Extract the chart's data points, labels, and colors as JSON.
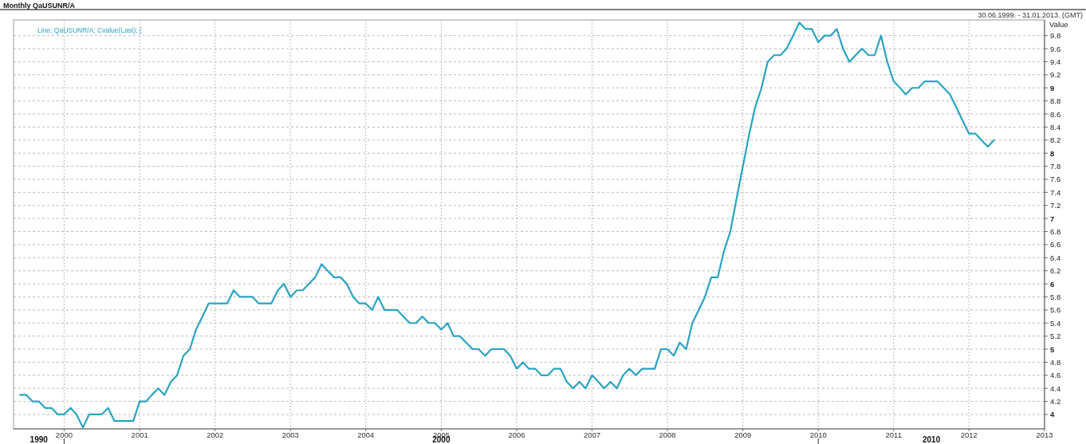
{
  "chart_data": {
    "type": "line",
    "title": "Monthly QaUSUNR/A",
    "subtitle": "30.06.1999. - 31.01.2013. (GMT)",
    "ylabel": "Value",
    "annotations": [
      "1990",
      "2000",
      "2010"
    ],
    "x": [
      "1999-06",
      "1999-07",
      "1999-08",
      "1999-09",
      "1999-10",
      "1999-11",
      "1999-12",
      "2000-01",
      "2000-02",
      "2000-03",
      "2000-04",
      "2000-05",
      "2000-06",
      "2000-07",
      "2000-08",
      "2000-09",
      "2000-10",
      "2000-11",
      "2000-12",
      "2001-01",
      "2001-02",
      "2001-03",
      "2001-04",
      "2001-05",
      "2001-06",
      "2001-07",
      "2001-08",
      "2001-09",
      "2001-10",
      "2001-11",
      "2001-12",
      "2002-01",
      "2002-02",
      "2002-03",
      "2002-04",
      "2002-05",
      "2002-06",
      "2002-07",
      "2002-08",
      "2002-09",
      "2002-10",
      "2002-11",
      "2002-12",
      "2003-01",
      "2003-02",
      "2003-03",
      "2003-04",
      "2003-05",
      "2003-06",
      "2003-07",
      "2003-08",
      "2003-09",
      "2003-10",
      "2003-11",
      "2003-12",
      "2004-01",
      "2004-02",
      "2004-03",
      "2004-04",
      "2004-05",
      "2004-06",
      "2004-07",
      "2004-08",
      "2004-09",
      "2004-10",
      "2004-11",
      "2004-12",
      "2005-01",
      "2005-02",
      "2005-03",
      "2005-04",
      "2005-05",
      "2005-06",
      "2005-07",
      "2005-08",
      "2005-09",
      "2005-10",
      "2005-11",
      "2005-12",
      "2006-01",
      "2006-02",
      "2006-03",
      "2006-04",
      "2006-05",
      "2006-06",
      "2006-07",
      "2006-08",
      "2006-09",
      "2006-10",
      "2006-11",
      "2006-12",
      "2007-01",
      "2007-02",
      "2007-03",
      "2007-04",
      "2007-05",
      "2007-06",
      "2007-07",
      "2007-08",
      "2007-09",
      "2007-10",
      "2007-11",
      "2007-12",
      "2008-01",
      "2008-02",
      "2008-03",
      "2008-04",
      "2008-05",
      "2008-06",
      "2008-07",
      "2008-08",
      "2008-09",
      "2008-10",
      "2008-11",
      "2008-12",
      "2009-01",
      "2009-02",
      "2009-03",
      "2009-04",
      "2009-05",
      "2009-06",
      "2009-07",
      "2009-08",
      "2009-09",
      "2009-10",
      "2009-11",
      "2009-12",
      "2010-01",
      "2010-02",
      "2010-03",
      "2010-04",
      "2010-05",
      "2010-06",
      "2010-07",
      "2010-08",
      "2010-09",
      "2010-10",
      "2010-11",
      "2010-12",
      "2011-01",
      "2011-02",
      "2011-03",
      "2011-04",
      "2011-05",
      "2011-06",
      "2011-07",
      "2011-08",
      "2011-09",
      "2011-10",
      "2011-11",
      "2011-12",
      "2012-01",
      "2012-02",
      "2012-03",
      "2012-04",
      "2012-05"
    ],
    "series": [
      {
        "name": "Line; QaUSUNR/A; Cvalue(Last); (",
        "color": "#2ba3c2",
        "values": [
          4.3,
          4.3,
          4.2,
          4.2,
          4.1,
          4.1,
          4.0,
          4.0,
          4.1,
          4.0,
          3.8,
          4.0,
          4.0,
          4.0,
          4.1,
          3.9,
          3.9,
          3.9,
          3.9,
          4.2,
          4.2,
          4.3,
          4.4,
          4.3,
          4.5,
          4.6,
          4.9,
          5.0,
          5.3,
          5.5,
          5.7,
          5.7,
          5.7,
          5.7,
          5.9,
          5.8,
          5.8,
          5.8,
          5.7,
          5.7,
          5.7,
          5.9,
          6.0,
          5.8,
          5.9,
          5.9,
          6.0,
          6.1,
          6.3,
          6.2,
          6.1,
          6.1,
          6.0,
          5.8,
          5.7,
          5.7,
          5.6,
          5.8,
          5.6,
          5.6,
          5.6,
          5.5,
          5.4,
          5.4,
          5.5,
          5.4,
          5.4,
          5.3,
          5.4,
          5.2,
          5.2,
          5.1,
          5.0,
          5.0,
          4.9,
          5.0,
          5.0,
          5.0,
          4.9,
          4.7,
          4.8,
          4.7,
          4.7,
          4.6,
          4.6,
          4.7,
          4.7,
          4.5,
          4.4,
          4.5,
          4.4,
          4.6,
          4.5,
          4.4,
          4.5,
          4.4,
          4.6,
          4.7,
          4.6,
          4.7,
          4.7,
          4.7,
          5.0,
          5.0,
          4.9,
          5.1,
          5.0,
          5.4,
          5.6,
          5.8,
          6.1,
          6.1,
          6.5,
          6.8,
          7.3,
          7.8,
          8.3,
          8.7,
          9.0,
          9.4,
          9.5,
          9.5,
          9.6,
          9.8,
          10.0,
          9.9,
          9.9,
          9.7,
          9.8,
          9.8,
          9.9,
          9.6,
          9.4,
          9.5,
          9.6,
          9.5,
          9.5,
          9.8,
          9.4,
          9.1,
          9.0,
          8.9,
          9.0,
          9.0,
          9.1,
          9.1,
          9.1,
          9.0,
          8.9,
          8.7,
          8.5,
          8.3,
          8.3,
          8.2,
          8.1,
          8.2
        ]
      }
    ],
    "xlim": [
      "1999-05",
      "2013-01"
    ],
    "xticks": [
      "2000",
      "2001",
      "2002",
      "2003",
      "2004",
      "2005",
      "2006",
      "2007",
      "2008",
      "2009",
      "2010",
      "2011",
      "2012",
      "2013"
    ],
    "ylim": [
      3.78,
      10.04
    ],
    "yticks": [
      4,
      4.2,
      4.4,
      4.6,
      4.8,
      5,
      5.2,
      5.4,
      5.6,
      5.8,
      6,
      6.2,
      6.4,
      6.6,
      6.8,
      7,
      7.2,
      7.4,
      7.6,
      7.8,
      8,
      8.2,
      8.4,
      8.6,
      8.8,
      9,
      9.2,
      9.4,
      9.6,
      9.8
    ],
    "grid": true,
    "legend": "top left",
    "marker": "none",
    "line_style": "solid"
  }
}
